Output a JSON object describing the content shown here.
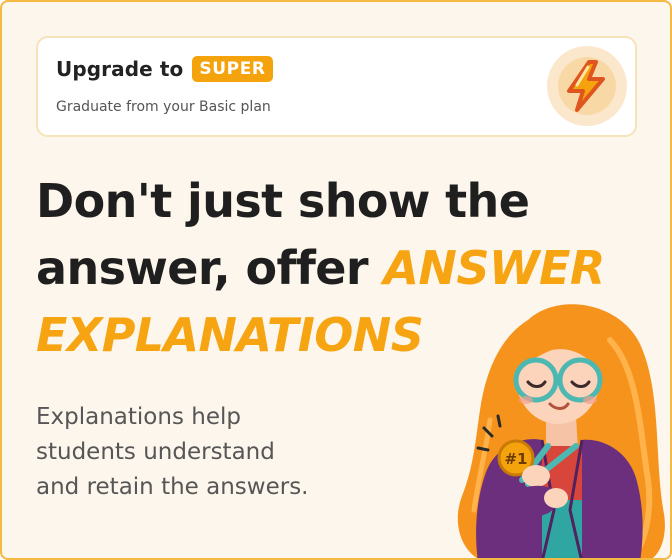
{
  "upgrade": {
    "title": "Upgrade to",
    "badge": "SUPER",
    "subtitle": "Graduate from your Basic plan",
    "icon": "lightning-bolt-icon"
  },
  "headline": {
    "line1": "Don't just show the",
    "line2_prefix": "answer, offer",
    "accent_line2": "ANSWER",
    "accent_line3": "EXPLANATIONS"
  },
  "body": {
    "line1": "Explanations help",
    "line2": "students understand",
    "line3": "and retain the answers."
  },
  "illustration": {
    "medal_text": "#1",
    "icon": "girl-with-medal-illustration"
  },
  "colors": {
    "accent": "#f7a412",
    "background": "#fdf6ec",
    "border": "#f2ba45",
    "text_dark": "#1f1f1f",
    "text_muted": "#565656"
  }
}
